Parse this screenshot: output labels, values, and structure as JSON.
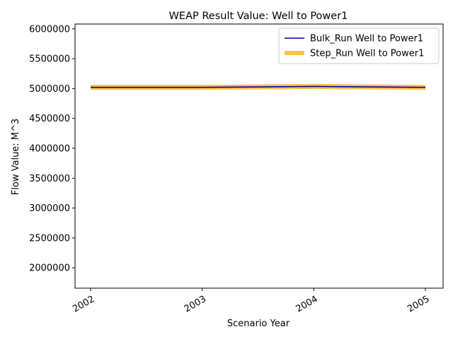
{
  "chart_data": {
    "type": "line",
    "title": "WEAP Result Value: Well to Power1",
    "xlabel": "Scenario Year",
    "ylabel": "Flow Value: M^3",
    "x": [
      "2002",
      "2003",
      "2004",
      "2005"
    ],
    "ylim": [
      1660000,
      6080000
    ],
    "yticks": [
      "2000000",
      "2500000",
      "3000000",
      "3500000",
      "4000000",
      "4500000",
      "5000000",
      "5500000",
      "6000000"
    ],
    "series": [
      {
        "name": "Bulk_Run Well to Power1",
        "values": [
          5020000,
          5020000,
          5035000,
          5020000
        ],
        "color": "#0000aa"
      },
      {
        "name": "Step_Run Well to Power1",
        "values": [
          5020000,
          5020000,
          5035000,
          5020000
        ],
        "color": "#ffa500"
      }
    ],
    "legend_position": "top-right",
    "grid": false
  }
}
